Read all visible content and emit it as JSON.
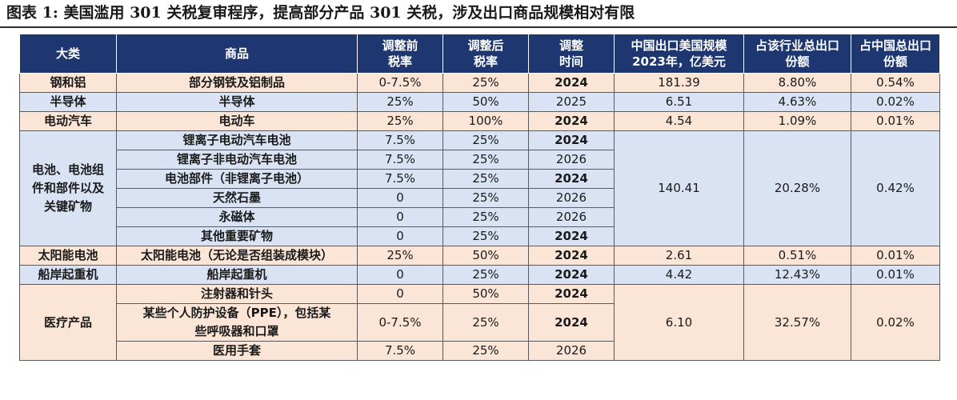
{
  "title": "图表 1: 美国滥用 301 关税复审程序，提高部分产品 301 关税，涉及出口商品规模相对有限",
  "headers": {
    "category": "大类",
    "product": "商品",
    "rate_before": [
      "调整前",
      "税率"
    ],
    "rate_after": [
      "调整后",
      "税率"
    ],
    "adjust_time": [
      "调整",
      "时间"
    ],
    "export_scale": [
      "中国出口美国规模",
      "2023年，亿美元"
    ],
    "industry_share": [
      "占该行业总出口",
      "份额"
    ],
    "china_share": [
      "占中国总出口",
      "份额"
    ]
  },
  "groups": [
    {
      "category": "钢和铝",
      "export": "181.39",
      "industry_share": "8.80%",
      "china_share": "0.54%",
      "items": [
        {
          "product": "部分钢铁及铝制品",
          "before": "0-7.5%",
          "after": "25%",
          "time": "2024",
          "highlight": true
        }
      ]
    },
    {
      "category": "半导体",
      "export": "6.51",
      "industry_share": "4.63%",
      "china_share": "0.02%",
      "items": [
        {
          "product": "半导体",
          "before": "25%",
          "after": "50%",
          "time": "2025",
          "highlight": false
        }
      ]
    },
    {
      "category": "电动汽车",
      "export": "4.54",
      "industry_share": "1.09%",
      "china_share": "0.01%",
      "items": [
        {
          "product": "电动车",
          "before": "25%",
          "after": "100%",
          "time": "2024",
          "highlight": true
        }
      ]
    },
    {
      "category": "电池、电池组件和部件以及关键矿物",
      "category_lines": [
        "电池、电池组",
        "件和部件以及",
        "关键矿物"
      ],
      "export": "140.41",
      "industry_share": "20.28%",
      "china_share": "0.42%",
      "items": [
        {
          "product": "锂离子电动汽车电池",
          "before": "7.5%",
          "after": "25%",
          "time": "2024",
          "highlight": true
        },
        {
          "product": "锂离子非电动汽车电池",
          "before": "7.5%",
          "after": "25%",
          "time": "2026",
          "highlight": false
        },
        {
          "product": "电池部件（非锂离子电池）",
          "before": "7.5%",
          "after": "25%",
          "time": "2024",
          "highlight": true
        },
        {
          "product": "天然石墨",
          "before": "0",
          "after": "25%",
          "time": "2026",
          "highlight": false
        },
        {
          "product": "永磁体",
          "before": "0",
          "after": "25%",
          "time": "2026",
          "highlight": false
        },
        {
          "product": "其他重要矿物",
          "before": "0",
          "after": "25%",
          "time": "2024",
          "highlight": true
        }
      ]
    },
    {
      "category": "太阳能电池",
      "export": "2.61",
      "industry_share": "0.51%",
      "china_share": "0.01%",
      "items": [
        {
          "product": "太阳能电池（无论是否组装成模块）",
          "before": "25%",
          "after": "50%",
          "time": "2024",
          "highlight": true
        }
      ]
    },
    {
      "category": "船岸起重机",
      "export": "4.42",
      "industry_share": "12.43%",
      "china_share": "0.01%",
      "items": [
        {
          "product": "船岸起重机",
          "before": "0",
          "after": "25%",
          "time": "2024",
          "highlight": true
        }
      ]
    },
    {
      "category": "医疗产品",
      "export": "6.10",
      "industry_share": "32.57%",
      "china_share": "0.02%",
      "items": [
        {
          "product": "注射器和针头",
          "before": "0",
          "after": "50%",
          "time": "2024",
          "highlight": true
        },
        {
          "product": "某些个人防护设备（PPE），包括某些呼吸器和口罩",
          "product_lines": [
            "某些个人防护设备（PPE），包括某",
            "些呼吸器和口罩"
          ],
          "before": "0-7.5%",
          "after": "25%",
          "time": "2024",
          "highlight": true
        },
        {
          "product": "医用手套",
          "before": "7.5%",
          "after": "25%",
          "time": "2026",
          "highlight": false
        }
      ]
    }
  ],
  "colors": {
    "header_bg": "#1f3770",
    "peach_row": "#fbe5d6",
    "blue_row": "#dae3f3",
    "highlight_year": "#c00000"
  }
}
